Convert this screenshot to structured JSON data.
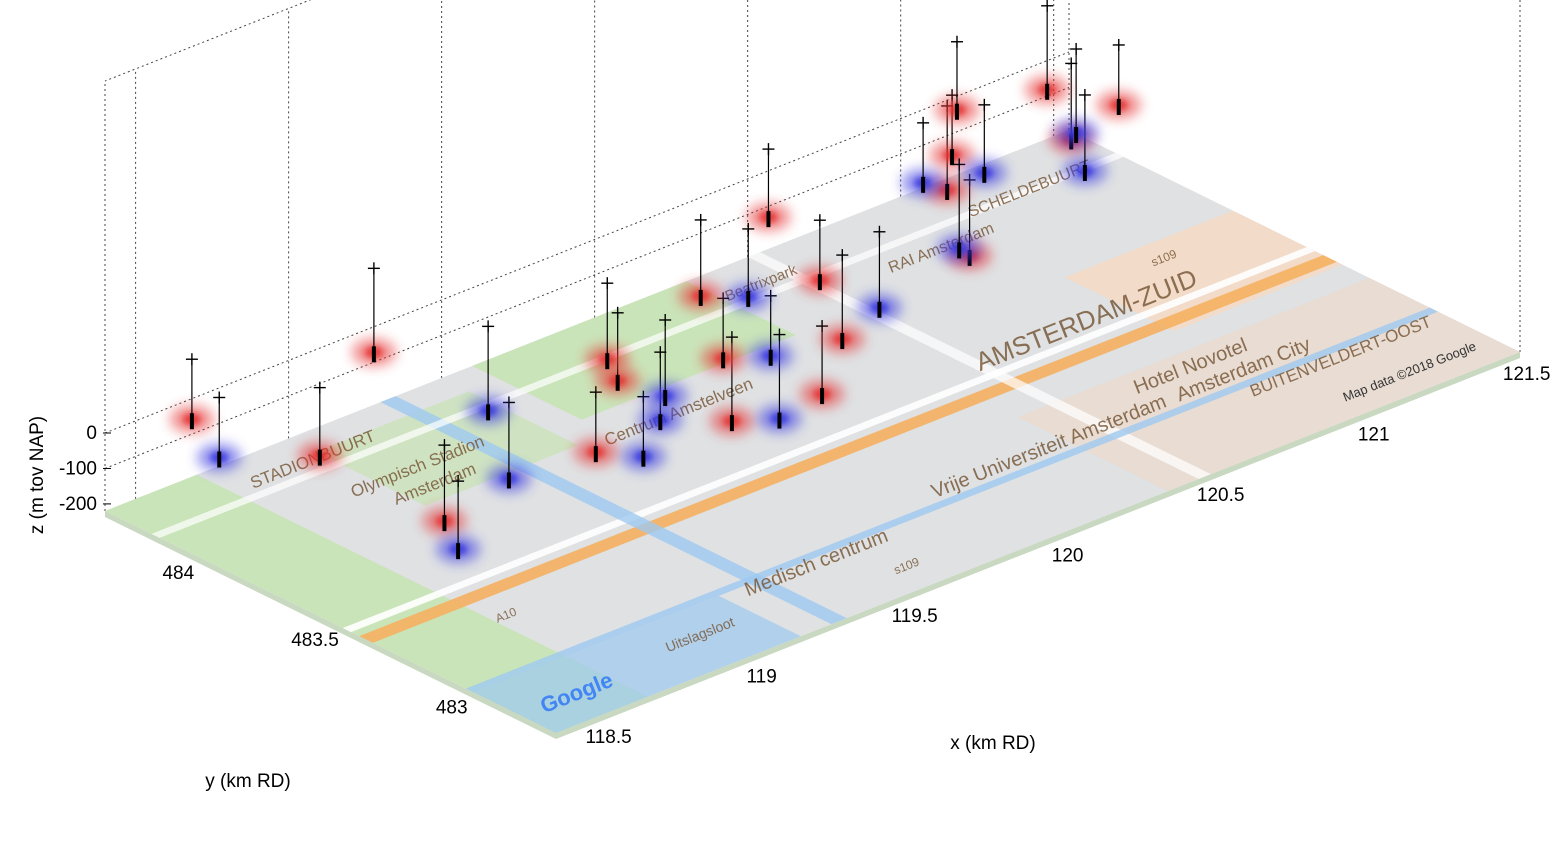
{
  "chart_data": {
    "type": "scatter",
    "title": "",
    "xlabel": "x (km RD)",
    "ylabel": "y (km RD)",
    "zlabel": "z (m tov NAP)",
    "xlim": [
      118.4,
      121.55
    ],
    "ylim": [
      482.75,
      484.4
    ],
    "zlim": [
      -220,
      0
    ],
    "x_ticks": [
      "118.5",
      "119",
      "119.5",
      "120",
      "120.5",
      "121",
      "121.5"
    ],
    "y_ticks": [
      "483",
      "483.5",
      "484"
    ],
    "z_ticks": [
      "0",
      "-100",
      "-200"
    ],
    "grid": true,
    "basemap": {
      "source_note": "Map data ©2018 Google",
      "logo": "Google",
      "labels": [
        "STADIONBUURT",
        "Olympisch Stadion",
        "Amsterdam",
        "Centrum Amstelveen",
        "Beatrixpark",
        "RAI Amsterdam",
        "SCHELDEBUURT",
        "AMSTERDAM-ZUID",
        "Hotel Novotel",
        "Amsterdam City",
        "BUITENVELDERT-OOST",
        "Vrije Universiteit Amsterdam",
        "Medisch centrum",
        "Uitslagsloot",
        "A10",
        "s109",
        "s109"
      ]
    },
    "series": [
      {
        "name": "",
        "color": "#e53030",
        "points": [
          {
            "x": 118.55,
            "y": 484.25,
            "z": -40
          },
          {
            "x": 118.7,
            "y": 483.95,
            "z": -80
          },
          {
            "x": 118.75,
            "y": 483.55,
            "z": -130
          },
          {
            "x": 119.1,
            "y": 484.2,
            "z": -20
          },
          {
            "x": 119.2,
            "y": 483.5,
            "z": -70
          },
          {
            "x": 119.45,
            "y": 483.7,
            "z": -30
          },
          {
            "x": 119.55,
            "y": 483.85,
            "z": -60
          },
          {
            "x": 119.6,
            "y": 483.45,
            "z": -100
          },
          {
            "x": 119.75,
            "y": 483.65,
            "z": -50
          },
          {
            "x": 119.85,
            "y": 483.4,
            "z": -90
          },
          {
            "x": 119.9,
            "y": 483.9,
            "z": -20
          },
          {
            "x": 120.05,
            "y": 483.55,
            "z": -60
          },
          {
            "x": 120.2,
            "y": 483.8,
            "z": -40
          },
          {
            "x": 120.3,
            "y": 484.1,
            "z": -10
          },
          {
            "x": 120.6,
            "y": 483.7,
            "z": -70
          },
          {
            "x": 120.75,
            "y": 483.95,
            "z": -30
          },
          {
            "x": 120.9,
            "y": 484.1,
            "z": -40
          },
          {
            "x": 121.05,
            "y": 484.25,
            "z": -20
          },
          {
            "x": 121.2,
            "y": 484.0,
            "z": -60
          },
          {
            "x": 121.3,
            "y": 484.2,
            "z": -30
          },
          {
            "x": 121.4,
            "y": 484.05,
            "z": -50
          }
        ]
      },
      {
        "name": "",
        "color": "#3838e0",
        "points": [
          {
            "x": 118.55,
            "y": 484.15,
            "z": -110
          },
          {
            "x": 118.75,
            "y": 483.5,
            "z": -190
          },
          {
            "x": 119.05,
            "y": 483.65,
            "z": -150
          },
          {
            "x": 119.25,
            "y": 483.95,
            "z": -140
          },
          {
            "x": 119.4,
            "y": 483.55,
            "z": -170
          },
          {
            "x": 119.5,
            "y": 483.6,
            "z": -120
          },
          {
            "x": 119.65,
            "y": 483.75,
            "z": -160
          },
          {
            "x": 119.8,
            "y": 483.5,
            "z": -180
          },
          {
            "x": 119.95,
            "y": 483.7,
            "z": -130
          },
          {
            "x": 120.1,
            "y": 483.95,
            "z": -110
          },
          {
            "x": 120.35,
            "y": 483.75,
            "z": -150
          },
          {
            "x": 120.7,
            "y": 483.85,
            "z": -140
          },
          {
            "x": 120.85,
            "y": 484.15,
            "z": -120
          },
          {
            "x": 121.05,
            "y": 484.15,
            "z": -160
          },
          {
            "x": 121.2,
            "y": 483.95,
            "z": -130
          },
          {
            "x": 121.35,
            "y": 484.15,
            "z": -150
          }
        ]
      }
    ],
    "annotations": [
      "black vertical lines with '+' markers indicating borehole/well positions above the map"
    ]
  }
}
